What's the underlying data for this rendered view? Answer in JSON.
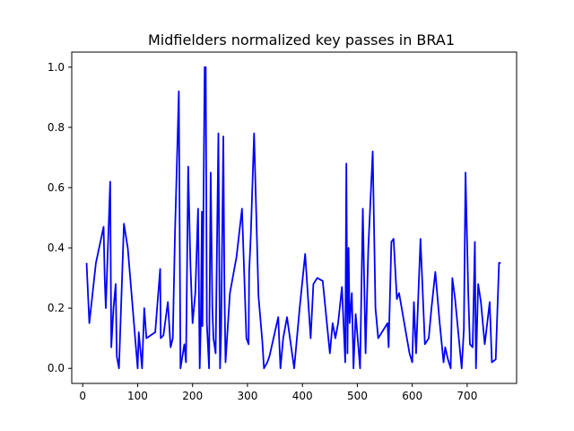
{
  "chart_data": {
    "type": "line",
    "title": "Midfielders normalized key passes in BRA1",
    "xlabel": "",
    "ylabel": "",
    "xlim": [
      -20,
      790
    ],
    "ylim": [
      -0.05,
      1.05
    ],
    "grid": false,
    "legend": "none",
    "x_ticks": [
      0,
      100,
      200,
      300,
      400,
      500,
      600,
      700
    ],
    "y_ticks": [
      0.0,
      0.2,
      0.4,
      0.6,
      0.8,
      1.0
    ],
    "x_tick_labels": [
      "0",
      "100",
      "200",
      "300",
      "400",
      "500",
      "600",
      "700"
    ],
    "y_tick_labels": [
      "0.0",
      "0.2",
      "0.4",
      "0.6",
      "0.8",
      "1.0"
    ],
    "series": [
      {
        "color": "#0000ff",
        "x": [
          7,
          12,
          24,
          38,
          40,
          42,
          50,
          52,
          56,
          60,
          62,
          66,
          75,
          82,
          100,
          102,
          108,
          112,
          116,
          132,
          141,
          142,
          147,
          155,
          160,
          164,
          168,
          175,
          178,
          185,
          188,
          192,
          196,
          200,
          205,
          210,
          213,
          215,
          217,
          218,
          222,
          224,
          226,
          230,
          233,
          236,
          238,
          242,
          247,
          250,
          252,
          256,
          258,
          260,
          268,
          280,
          290,
          298,
          302,
          303,
          306,
          312,
          320,
          327,
          330,
          336,
          340,
          356,
          360,
          365,
          372,
          385,
          395,
          405,
          415,
          420,
          427,
          437,
          450,
          455,
          460,
          465,
          472,
          478,
          480,
          482,
          484,
          486,
          490,
          493,
          497,
          502,
          505,
          510,
          515,
          520,
          528,
          533,
          538,
          555,
          557,
          562,
          566,
          572,
          576,
          595,
          600,
          603,
          607,
          615,
          623,
          630,
          635,
          642,
          650,
          657,
          660,
          665,
          670,
          673,
          678,
          690,
          694,
          697,
          702,
          705,
          710,
          714,
          716,
          720,
          725,
          732,
          741,
          745,
          752,
          758,
          761
        ],
        "y": [
          0.35,
          0.15,
          0.35,
          0.47,
          0.3,
          0.2,
          0.62,
          0.07,
          0.2,
          0.28,
          0.04,
          0.0,
          0.48,
          0.4,
          0.0,
          0.12,
          0.0,
          0.2,
          0.1,
          0.12,
          0.33,
          0.1,
          0.11,
          0.22,
          0.07,
          0.1,
          0.45,
          0.92,
          0.0,
          0.08,
          0.02,
          0.67,
          0.35,
          0.15,
          0.25,
          0.53,
          0.0,
          0.15,
          0.52,
          0.14,
          1.0,
          1.0,
          0.15,
          0.0,
          0.65,
          0.2,
          0.1,
          0.05,
          0.78,
          0.0,
          0.12,
          0.77,
          0.27,
          0.02,
          0.25,
          0.37,
          0.53,
          0.1,
          0.08,
          0.32,
          0.44,
          0.78,
          0.24,
          0.09,
          0.0,
          0.02,
          0.04,
          0.17,
          0.0,
          0.1,
          0.17,
          0.0,
          0.2,
          0.38,
          0.1,
          0.28,
          0.3,
          0.29,
          0.05,
          0.15,
          0.1,
          0.15,
          0.27,
          0.02,
          0.68,
          0.05,
          0.4,
          0.15,
          0.25,
          0.0,
          0.18,
          0.07,
          0.0,
          0.53,
          0.05,
          0.4,
          0.72,
          0.2,
          0.1,
          0.15,
          0.07,
          0.42,
          0.43,
          0.23,
          0.25,
          0.05,
          0.02,
          0.22,
          0.05,
          0.43,
          0.08,
          0.1,
          0.2,
          0.32,
          0.15,
          0.02,
          0.07,
          0.03,
          0.0,
          0.3,
          0.23,
          0.0,
          0.13,
          0.65,
          0.25,
          0.08,
          0.07,
          0.42,
          0.0,
          0.28,
          0.22,
          0.08,
          0.22,
          0.02,
          0.03,
          0.35,
          0.35
        ]
      }
    ]
  }
}
